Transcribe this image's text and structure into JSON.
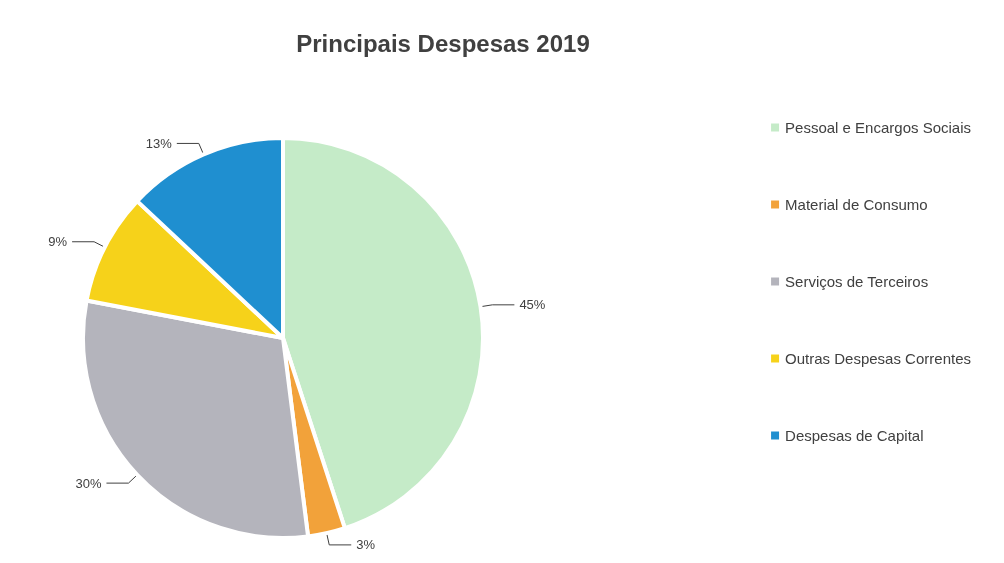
{
  "chart_data": {
    "type": "pie",
    "title": "Principais Despesas 2019",
    "categories": [
      "Pessoal e Encargos Sociais",
      "Material de Consumo",
      "Serviços de Terceiros",
      "Outras Despesas Correntes",
      "Despesas de Capital"
    ],
    "values": [
      45,
      3,
      30,
      9,
      13
    ],
    "colors": [
      "#c5ebc8",
      "#f2a23a",
      "#b4b4bc",
      "#f6d21a",
      "#1f8fd0"
    ],
    "value_labels": [
      "45%",
      "3%",
      "30%",
      "9%",
      "13%"
    ],
    "legend": "right"
  }
}
